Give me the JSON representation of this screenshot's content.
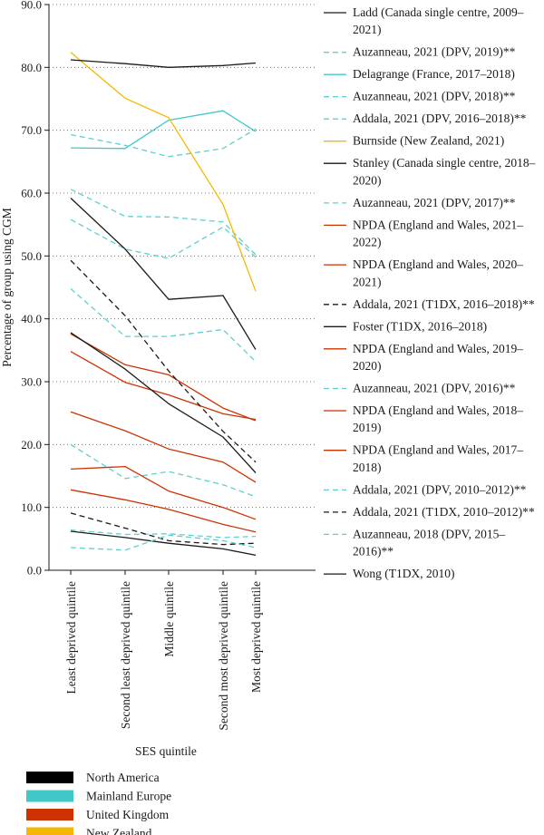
{
  "chart_data": {
    "type": "line",
    "xlabel": "SES quintile",
    "ylabel": "Percentage of group using CGM",
    "ylim": [
      0,
      90
    ],
    "yticks": [
      "0.0",
      "10.0",
      "20.0",
      "30.0",
      "40.0",
      "50.0",
      "60.0",
      "70.0",
      "80.0",
      "90.0"
    ],
    "grid": "horizontal dotted",
    "categories": [
      "Least deprived quintile",
      "Second least deprived quintile",
      "Middle quintile",
      "Second most deprived quintile",
      "Most deprived quintile"
    ],
    "legend_position": "right",
    "regions": [
      {
        "name": "North America",
        "color": "#000000"
      },
      {
        "name": "Mainland Europe",
        "color": "#40c8c8"
      },
      {
        "name": "United Kingdom",
        "color": "#cc3300"
      },
      {
        "name": "New Zealand",
        "color": "#f5b800"
      }
    ],
    "series": [
      {
        "label_lines": [
          "Ladd (Canada single centre, 2009–",
          "2021)"
        ],
        "color": "#1a1a1a",
        "dash": "solid",
        "values": [
          6.2,
          5.2,
          4.3,
          3.4,
          2.4
        ]
      },
      {
        "label_lines": [
          "Auzanneau, 2021 (DPV, 2019)**"
        ],
        "color": "#5fcfcf",
        "dash": "dashed",
        "values": [
          60.6,
          56.3,
          56.2,
          55.4,
          50.2
        ]
      },
      {
        "label_lines": [
          "Delagrange (France, 2017–2018)"
        ],
        "color": "#40c8c8",
        "dash": "solid",
        "values": [
          67.2,
          67.1,
          71.6,
          73.1,
          69.8
        ]
      },
      {
        "label_lines": [
          "Auzanneau, 2021 (DPV, 2018)**"
        ],
        "color": "#5fcfcf",
        "dash": "dashed",
        "values": [
          55.8,
          51.1,
          49.6,
          54.6,
          49.8
        ]
      },
      {
        "label_lines": [
          "Addala, 2021 (DPV, 2016–2018)**"
        ],
        "color": "#5fcfcf",
        "dash": "dashed",
        "values": [
          69.3,
          67.6,
          65.8,
          67.1,
          70.2
        ]
      },
      {
        "label_lines": [
          "Burnside (New Zealand, 2021)"
        ],
        "color": "#f5b800",
        "dash": "solid",
        "values": [
          82.4,
          75.1,
          72.0,
          58.2,
          44.4
        ]
      },
      {
        "label_lines": [
          "Stanley (Canada single centre, 2018–",
          "2020)"
        ],
        "color": "#1a1a1a",
        "dash": "solid",
        "values": [
          81.2,
          80.6,
          80.0,
          80.3,
          80.7
        ]
      },
      {
        "label_lines": [
          "Auzanneau, 2021 (DPV, 2017)**"
        ],
        "color": "#5fcfcf",
        "dash": "dashed",
        "values": [
          44.8,
          37.2,
          37.2,
          38.3,
          33.2
        ]
      },
      {
        "label_lines": [
          "NPDA (England and Wales, 2021–",
          "2022)"
        ],
        "color": "#cc3300",
        "dash": "solid",
        "values": [
          37.6,
          32.7,
          31.1,
          25.8,
          23.8
        ]
      },
      {
        "label_lines": [
          "NPDA (England and Wales, 2020–",
          "2021)"
        ],
        "color": "#cc3300",
        "dash": "solid",
        "values": [
          34.8,
          29.9,
          27.9,
          24.9,
          24.0
        ]
      },
      {
        "label_lines": [
          "Addala, 2021 (T1DX, 2016–2018)**"
        ],
        "color": "#1a1a1a",
        "dash": "dashed",
        "values": [
          49.3,
          40.5,
          31.7,
          22.1,
          17.2
        ]
      },
      {
        "label_lines": [
          "Foster (T1DX, 2016–2018)"
        ],
        "color": "#1a1a1a",
        "dash": "solid",
        "values": [
          59.2,
          51.1,
          43.1,
          43.7,
          35.1
        ]
      },
      {
        "label_lines": [
          "NPDA (England and Wales, 2019–",
          "2020)"
        ],
        "color": "#cc3300",
        "dash": "solid",
        "values": [
          25.2,
          22.2,
          19.3,
          17.2,
          14.0
        ]
      },
      {
        "label_lines": [
          "Auzanneau, 2021 (DPV, 2016)**"
        ],
        "color": "#5fcfcf",
        "dash": "dashed",
        "values": [
          20.0,
          14.6,
          15.7,
          13.6,
          11.7
        ]
      },
      {
        "label_lines": [
          "NPDA (England and Wales, 2018–",
          "2019)"
        ],
        "color": "#cc3300",
        "dash": "solid",
        "values": [
          16.1,
          16.5,
          12.6,
          10.0,
          8.1
        ]
      },
      {
        "label_lines": [
          "NPDA (England and Wales, 2017–",
          "2018)"
        ],
        "color": "#cc3300",
        "dash": "solid",
        "values": [
          12.8,
          11.2,
          9.7,
          7.3,
          6.1
        ]
      },
      {
        "label_lines": [
          "Addala, 2021 (DPV, 2010–2012)**"
        ],
        "color": "#5fcfcf",
        "dash": "dashed",
        "values": [
          6.4,
          5.7,
          5.8,
          5.2,
          5.4
        ]
      },
      {
        "label_lines": [
          "Addala, 2021 (T1DX, 2010–2012)**"
        ],
        "color": "#1a1a1a",
        "dash": "dashed",
        "values": [
          9.1,
          6.7,
          4.7,
          4.1,
          4.3
        ]
      },
      {
        "label_lines": [
          "Auzanneau, 2018 (DPV, 2015–",
          "2016)**"
        ],
        "color": "#5fcfcf",
        "dash": "dashed",
        "values": [
          3.6,
          3.2,
          5.6,
          4.7,
          3.6
        ]
      },
      {
        "label_lines": [
          "Wong (T1DX, 2010)"
        ],
        "color": "#1a1a1a",
        "dash": "solid",
        "values": [
          37.8,
          32.0,
          26.5,
          21.2,
          15.5
        ]
      }
    ]
  }
}
